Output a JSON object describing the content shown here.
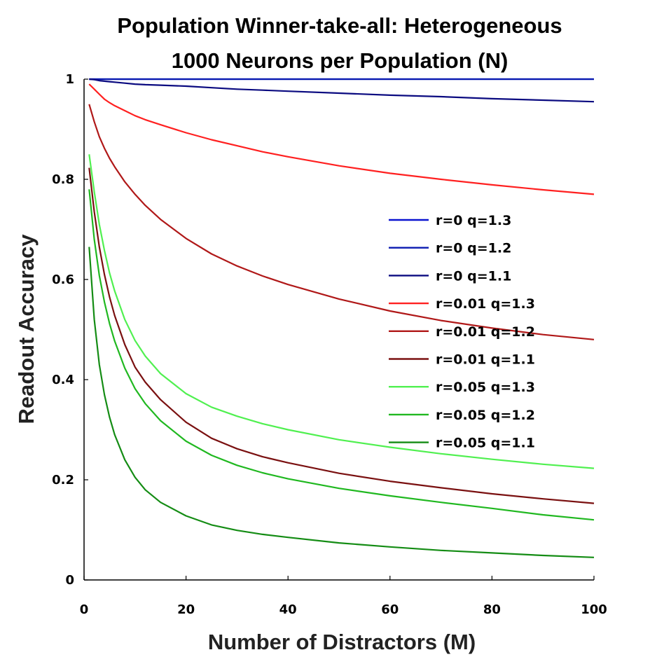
{
  "chart_data": {
    "type": "line",
    "title_line1": "Population Winner-take-all: Heterogeneous",
    "title_line2": "1000 Neurons per Population (N)",
    "xlabel": "Number of Distractors (M)",
    "ylabel": "Readout Accuracy",
    "xlim": [
      0,
      100
    ],
    "ylim": [
      0,
      1
    ],
    "x_ticks": [
      "0",
      "20",
      "40",
      "60",
      "80",
      "100"
    ],
    "y_ticks": [
      "0",
      "0.2",
      "0.4",
      "0.6",
      "0.8",
      "1"
    ],
    "grid": false,
    "legend_position": "right",
    "x": [
      1,
      2,
      3,
      4,
      5,
      6,
      8,
      10,
      12,
      15,
      20,
      25,
      30,
      35,
      40,
      50,
      60,
      70,
      80,
      90,
      100
    ],
    "series": [
      {
        "name": "r=0 q=1.3",
        "color": "#0a14d0",
        "values": [
          1.0,
          1.0,
          1.0,
          1.0,
          1.0,
          1.0,
          1.0,
          1.0,
          1.0,
          1.0,
          1.0,
          1.0,
          1.0,
          1.0,
          1.0,
          1.0,
          1.0,
          1.0,
          1.0,
          1.0,
          1.0
        ]
      },
      {
        "name": "r=0 q=1.2",
        "color": "#0a1ab0",
        "values": [
          1.0,
          1.0,
          1.0,
          1.0,
          1.0,
          1.0,
          1.0,
          1.0,
          1.0,
          1.0,
          1.0,
          1.0,
          1.0,
          1.0,
          1.0,
          1.0,
          1.0,
          1.0,
          1.0,
          1.0,
          1.0
        ]
      },
      {
        "name": "r=0 q=1.1",
        "color": "#0a0a80",
        "values": [
          1.0,
          0.999,
          0.997,
          0.996,
          0.995,
          0.994,
          0.992,
          0.99,
          0.989,
          0.988,
          0.986,
          0.983,
          0.98,
          0.978,
          0.976,
          0.972,
          0.968,
          0.965,
          0.961,
          0.958,
          0.955
        ]
      },
      {
        "name": "r=0.01 q=1.3",
        "color": "#ff2020",
        "values": [
          0.99,
          0.98,
          0.97,
          0.96,
          0.953,
          0.947,
          0.937,
          0.927,
          0.919,
          0.909,
          0.893,
          0.879,
          0.867,
          0.855,
          0.845,
          0.827,
          0.812,
          0.8,
          0.789,
          0.779,
          0.77
        ]
      },
      {
        "name": "r=0.01 q=1.2",
        "color": "#b01818",
        "values": [
          0.95,
          0.915,
          0.885,
          0.862,
          0.842,
          0.825,
          0.795,
          0.77,
          0.748,
          0.72,
          0.682,
          0.651,
          0.627,
          0.607,
          0.59,
          0.561,
          0.537,
          0.518,
          0.503,
          0.49,
          0.48
        ]
      },
      {
        "name": "r=0.01 q=1.1",
        "color": "#7a1010",
        "values": [
          0.823,
          0.735,
          0.665,
          0.61,
          0.565,
          0.528,
          0.47,
          0.425,
          0.395,
          0.36,
          0.315,
          0.283,
          0.262,
          0.246,
          0.234,
          0.213,
          0.197,
          0.184,
          0.172,
          0.162,
          0.153
        ]
      },
      {
        "name": "r=0.05 q=1.3",
        "color": "#50f050",
        "values": [
          0.85,
          0.775,
          0.71,
          0.658,
          0.613,
          0.577,
          0.52,
          0.478,
          0.447,
          0.412,
          0.372,
          0.345,
          0.327,
          0.312,
          0.3,
          0.28,
          0.265,
          0.252,
          0.241,
          0.231,
          0.223
        ]
      },
      {
        "name": "r=0.05 q=1.2",
        "color": "#20b820",
        "values": [
          0.78,
          0.68,
          0.608,
          0.555,
          0.512,
          0.477,
          0.423,
          0.382,
          0.352,
          0.318,
          0.277,
          0.249,
          0.229,
          0.214,
          0.202,
          0.183,
          0.168,
          0.155,
          0.143,
          0.13,
          0.12
        ]
      },
      {
        "name": "r=0.05 q=1.1",
        "color": "#148c14",
        "values": [
          0.665,
          0.52,
          0.43,
          0.37,
          0.325,
          0.29,
          0.24,
          0.205,
          0.18,
          0.155,
          0.128,
          0.11,
          0.099,
          0.091,
          0.085,
          0.074,
          0.066,
          0.059,
          0.054,
          0.049,
          0.045
        ]
      }
    ]
  }
}
